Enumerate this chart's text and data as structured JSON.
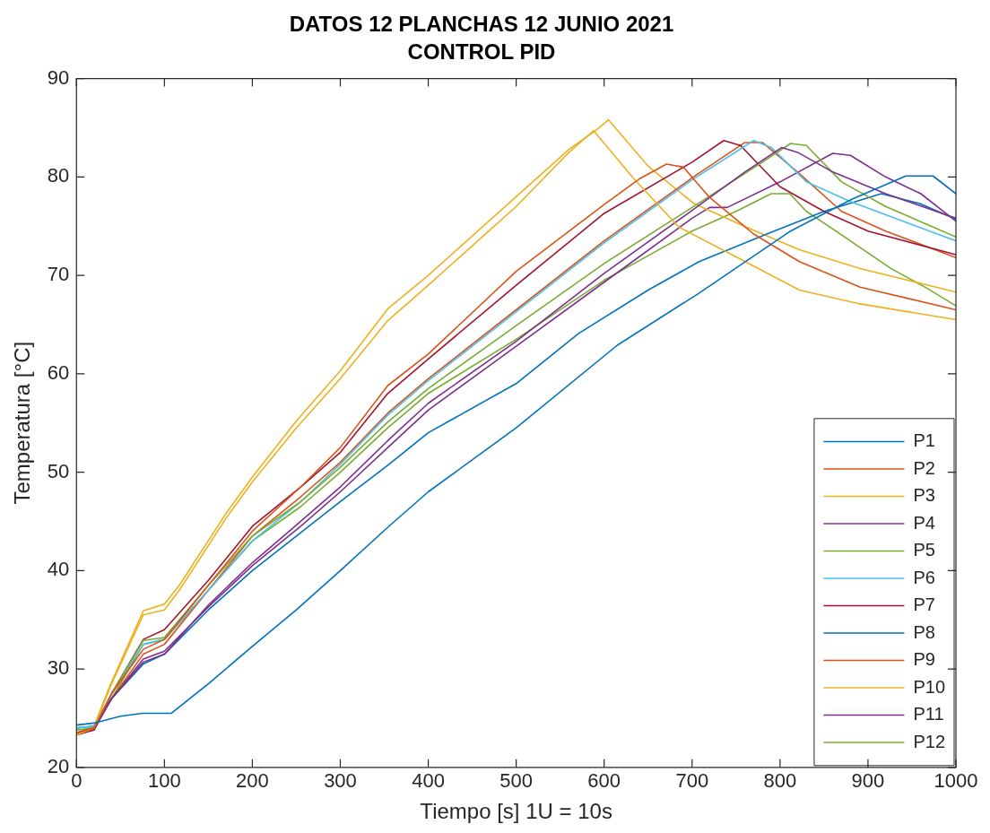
{
  "chart_data": {
    "type": "line",
    "title": "DATOS 12 PLANCHAS 12 JUNIO 2021",
    "subtitle": "CONTROL PID",
    "xlabel": "Tiempo [s] 1U = 10s",
    "ylabel": "Temperatura [°C]",
    "xlim": [
      0,
      1000
    ],
    "xticks": [
      0,
      100,
      200,
      300,
      400,
      500,
      600,
      700,
      800,
      900,
      1000
    ],
    "ylim": [
      20,
      90
    ],
    "yticks": [
      20,
      30,
      40,
      50,
      60,
      70,
      80,
      90
    ],
    "legend": "bottom right",
    "marker": "none",
    "line_style": "solid",
    "series": [
      {
        "name": "P1",
        "color": "#0072bd",
        "x": [
          0,
          20,
          50,
          75,
          108,
          150,
          200,
          250,
          300,
          354,
          400,
          500,
          615,
          708,
          812,
          881,
          943,
          974,
          1000
        ],
        "values": [
          24.3,
          24.5,
          25.2,
          25.5,
          25.5,
          28.5,
          32.3,
          36,
          40,
          44.4,
          48,
          54.5,
          62.9,
          68.2,
          74.5,
          77.7,
          80.1,
          80.1,
          78.3
        ]
      },
      {
        "name": "P2",
        "color": "#d95319",
        "x": [
          0,
          20,
          40,
          76,
          100,
          150,
          200,
          255,
          300,
          354,
          400,
          500,
          600,
          640,
          671,
          690,
          719,
          770,
          822,
          891,
          1000
        ],
        "values": [
          23.5,
          24,
          27.5,
          32,
          33,
          38.5,
          44,
          48.5,
          52.5,
          58.8,
          62,
          70.4,
          77.2,
          79.8,
          81.3,
          81,
          78,
          74.2,
          71.4,
          68.8,
          66.5
        ]
      },
      {
        "name": "P3",
        "color": "#edb120",
        "x": [
          0,
          20,
          38,
          76,
          100,
          117,
          170,
          200,
          250,
          300,
          354,
          400,
          500,
          560,
          588,
          633,
          685,
          754,
          822,
          891,
          1000
        ],
        "values": [
          23.3,
          24,
          28.1,
          35.5,
          36,
          38,
          45.3,
          49,
          54.5,
          59.5,
          65.4,
          69,
          77,
          82.5,
          84.7,
          79.9,
          74.9,
          71.7,
          68.5,
          67.1,
          65.5
        ]
      },
      {
        "name": "P4",
        "color": "#7e2f8e",
        "x": [
          0,
          20,
          40,
          76,
          100,
          150,
          200,
          255,
          300,
          354,
          400,
          500,
          600,
          700,
          760,
          802,
          820,
          860,
          920,
          1000
        ],
        "values": [
          23.5,
          24,
          27,
          30.7,
          31.5,
          36.5,
          40.8,
          45,
          48.5,
          53.2,
          57,
          63.3,
          70.2,
          76.6,
          80.5,
          83,
          82.5,
          80.5,
          78.3,
          75.8
        ]
      },
      {
        "name": "P5",
        "color": "#77ac30",
        "x": [
          0,
          20,
          40,
          76,
          100,
          150,
          200,
          255,
          300,
          354,
          400,
          500,
          600,
          700,
          780,
          812,
          830,
          870,
          920,
          1000
        ],
        "values": [
          23.8,
          24,
          27.5,
          32.9,
          33.2,
          38.5,
          43.5,
          47,
          50.5,
          55.1,
          58.5,
          64.9,
          71.2,
          76.9,
          81.5,
          83.4,
          83.2,
          79.5,
          77,
          73.9
        ]
      },
      {
        "name": "P6",
        "color": "#4dbeee",
        "x": [
          0,
          20,
          40,
          76,
          100,
          150,
          200,
          255,
          300,
          354,
          400,
          500,
          600,
          700,
          770,
          790,
          830,
          880,
          940,
          1000
        ],
        "values": [
          24,
          24.2,
          27.5,
          32.5,
          33,
          38,
          43,
          47,
          50.8,
          55.8,
          59.3,
          66.3,
          73.3,
          79.7,
          83.7,
          83,
          79.5,
          77.5,
          75.5,
          73.5
        ]
      },
      {
        "name": "P7",
        "color": "#a2142f",
        "x": [
          0,
          20,
          40,
          76,
          100,
          150,
          200,
          255,
          300,
          354,
          400,
          500,
          600,
          700,
          736,
          755,
          800,
          850,
          900,
          1000
        ],
        "values": [
          23.3,
          23.8,
          27.5,
          33,
          34,
          39,
          44.5,
          48.5,
          52,
          58,
          61.5,
          69,
          76.3,
          81.5,
          83.7,
          83.2,
          79,
          76.5,
          74.5,
          72.1
        ]
      },
      {
        "name": "P8",
        "color": "#0072bd",
        "x": [
          0,
          20,
          40,
          76,
          100,
          150,
          200,
          250,
          300,
          354,
          400,
          500,
          571,
          650,
          708,
          785,
          850,
          915,
          959,
          1000
        ],
        "values": [
          24,
          24.2,
          27,
          30.5,
          31.5,
          36,
          40,
          43.5,
          47,
          50.7,
          54,
          59,
          64.1,
          68.5,
          71.4,
          74.2,
          76.5,
          78.3,
          77.3,
          75.7
        ]
      },
      {
        "name": "P9",
        "color": "#d95319",
        "x": [
          0,
          20,
          40,
          76,
          100,
          150,
          200,
          255,
          300,
          354,
          400,
          500,
          600,
          700,
          760,
          780,
          820,
          870,
          920,
          1000
        ],
        "values": [
          23.5,
          24,
          27,
          31.5,
          32.5,
          38,
          43.5,
          47.5,
          51,
          56,
          59.5,
          66.5,
          73.5,
          79.9,
          83.5,
          83.5,
          80.5,
          76.5,
          74.5,
          71.8
        ]
      },
      {
        "name": "P10",
        "color": "#edb120",
        "x": [
          0,
          20,
          38,
          76,
          100,
          117,
          170,
          200,
          250,
          300,
          354,
          400,
          500,
          560,
          590,
          605,
          650,
          702,
          754,
          822,
          891,
          1000
        ],
        "values": [
          23.5,
          24.2,
          28.3,
          35.9,
          36.6,
          38.5,
          45.8,
          49.5,
          55.2,
          60.3,
          66.6,
          70,
          78,
          82.8,
          84.7,
          85.8,
          81.1,
          77.3,
          75.2,
          72.6,
          70.7,
          68.3
        ]
      },
      {
        "name": "P11",
        "color": "#7e2f8e",
        "x": [
          0,
          20,
          40,
          76,
          100,
          150,
          200,
          255,
          300,
          354,
          400,
          500,
          600,
          700,
          720,
          740,
          800,
          860,
          880,
          920,
          960,
          1000
        ],
        "values": [
          23.3,
          23.8,
          27,
          31,
          31.8,
          36.3,
          40.5,
          44.5,
          48,
          52.5,
          56.3,
          62.8,
          69.3,
          75.8,
          76.9,
          76.9,
          79.5,
          82.4,
          82.2,
          80,
          78.3,
          75.5
        ]
      },
      {
        "name": "P12",
        "color": "#77ac30",
        "x": [
          0,
          20,
          40,
          76,
          100,
          150,
          200,
          255,
          300,
          354,
          400,
          500,
          600,
          650,
          700,
          750,
          790,
          811,
          830,
          857,
          926,
          967,
          1000
        ],
        "values": [
          23.5,
          24,
          27,
          32.5,
          33,
          38,
          43,
          46.5,
          50,
          54.5,
          58,
          63.5,
          69.5,
          72,
          74.5,
          76.5,
          78.3,
          78.3,
          76.5,
          74.9,
          70.7,
          68.7,
          66.9
        ]
      }
    ]
  }
}
